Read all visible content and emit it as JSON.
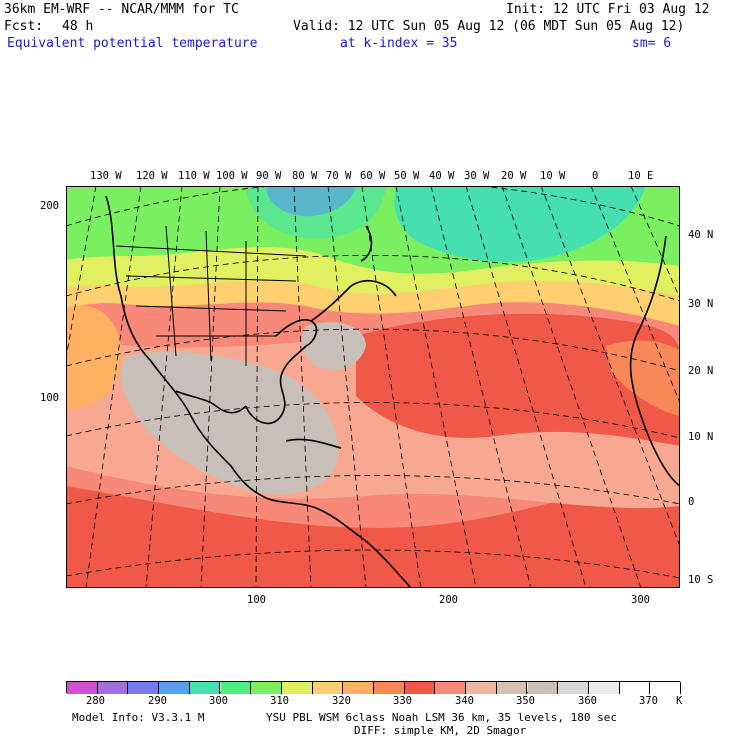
{
  "header": {
    "model": "36km EM-WRF -- NCAR/MMM for TC",
    "init": "Init: 12 UTC Fri 03 Aug 12",
    "fcst_label": "Fcst:",
    "fcst_value": "48 h",
    "valid": "Valid: 12 UTC Sun 05 Aug 12 (06 MDT Sun 05 Aug 12)",
    "field": "Equivalent potential temperature",
    "level": "at k-index =  35",
    "smooth": "sm= 6"
  },
  "map": {
    "top_lon_labels": [
      "130 W",
      "120 W",
      "110 W",
      "100 W",
      "90 W",
      "80 W",
      "70 W",
      "60 W",
      "50 W",
      "40 W",
      "30 W",
      "20 W",
      "10 W",
      "0",
      "10 E"
    ],
    "right_lat_labels": [
      "40 N",
      "30 N",
      "20 N",
      "10 N",
      "0",
      "10 S"
    ],
    "left_grid_labels": [
      "200",
      "100"
    ],
    "bottom_grid_labels": [
      "100",
      "200",
      "300"
    ]
  },
  "colorbar": {
    "unit": "K",
    "labels": [
      "280",
      "290",
      "300",
      "310",
      "320",
      "330",
      "340",
      "350",
      "360",
      "370"
    ],
    "colors": [
      "#d050d0",
      "#a070e0",
      "#7878f0",
      "#5aa0f0",
      "#46e0b0",
      "#4cf080",
      "#7af060",
      "#e0f060",
      "#ffd070",
      "#ffb060",
      "#f88858",
      "#f05848",
      "#f88878",
      "#f0b8a0",
      "#d8c0b0",
      "#c8c0b8",
      "#d8d8d8",
      "#ececec",
      "#ffffff",
      "#ffffff"
    ]
  },
  "footer": {
    "model_info": "Model Info: V3.3.1 M",
    "physics": "YSU PBL  WSM 6class  Noah LSM  36 km,   35 levels,  180 sec",
    "diffusion": "DIFF: simple KM, 2D Smagor"
  }
}
